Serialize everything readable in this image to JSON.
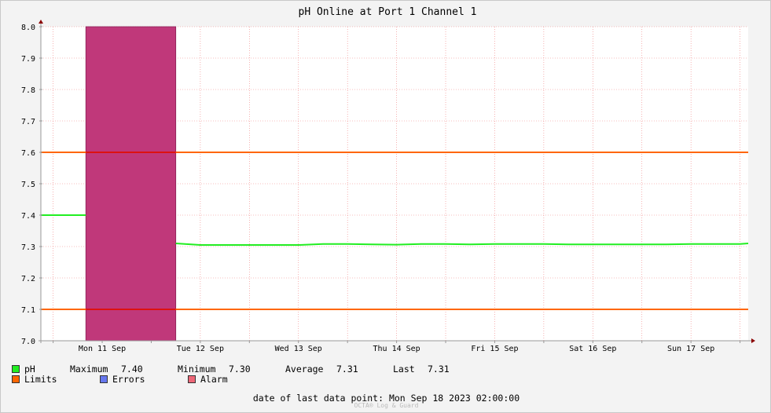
{
  "chart_data": {
    "type": "line",
    "title": "pH Online at Port 1 Channel 1",
    "ylim": [
      7.0,
      8.0
    ],
    "yticks": [
      "7.0",
      "7.1",
      "7.2",
      "7.3",
      "7.4",
      "7.5",
      "7.6",
      "7.7",
      "7.8",
      "7.9",
      "8.0"
    ],
    "xlim": [
      "2023-09-10T21:00",
      "2023-09-18T02:00"
    ],
    "xtick_labels": [
      {
        "label": "Mon 11 Sep",
        "at": "2023-09-11T12:00"
      },
      {
        "label": "Tue 12 Sep",
        "at": "2023-09-12T12:00"
      },
      {
        "label": "Wed 13 Sep",
        "at": "2023-09-13T12:00"
      },
      {
        "label": "Thu 14 Sep",
        "at": "2023-09-14T12:00"
      },
      {
        "label": "Fri 15 Sep",
        "at": "2023-09-15T12:00"
      },
      {
        "label": "Sat 16 Sep",
        "at": "2023-09-16T12:00"
      },
      {
        "label": "Sun 17 Sep",
        "at": "2023-09-17T12:00"
      }
    ],
    "grid": true,
    "limits": [
      7.1,
      7.6
    ],
    "error_band": {
      "from": "2023-09-11T08:00",
      "to": "2023-09-12T06:00",
      "color": "#c0387a"
    },
    "series": [
      {
        "name": "pH",
        "color": "#22ee22",
        "points": [
          [
            "2023-09-10T21:00",
            7.4
          ],
          [
            "2023-09-11T00:00",
            7.4
          ],
          [
            "2023-09-11T03:00",
            7.4
          ],
          [
            "2023-09-11T06:00",
            7.4
          ],
          [
            "2023-09-11T08:00",
            7.4
          ],
          null,
          [
            "2023-09-12T06:00",
            7.31
          ],
          [
            "2023-09-12T12:00",
            7.305
          ],
          [
            "2023-09-12T18:00",
            7.305
          ],
          [
            "2023-09-13T00:00",
            7.305
          ],
          [
            "2023-09-13T06:00",
            7.305
          ],
          [
            "2023-09-13T12:00",
            7.305
          ],
          [
            "2023-09-13T18:00",
            7.308
          ],
          [
            "2023-09-14T00:00",
            7.308
          ],
          [
            "2023-09-14T06:00",
            7.307
          ],
          [
            "2023-09-14T12:00",
            7.306
          ],
          [
            "2023-09-14T18:00",
            7.308
          ],
          [
            "2023-09-15T00:00",
            7.308
          ],
          [
            "2023-09-15T06:00",
            7.307
          ],
          [
            "2023-09-15T12:00",
            7.308
          ],
          [
            "2023-09-15T18:00",
            7.308
          ],
          [
            "2023-09-16T00:00",
            7.308
          ],
          [
            "2023-09-16T06:00",
            7.307
          ],
          [
            "2023-09-16T12:00",
            7.307
          ],
          [
            "2023-09-16T18:00",
            7.307
          ],
          [
            "2023-09-17T00:00",
            7.307
          ],
          [
            "2023-09-17T06:00",
            7.307
          ],
          [
            "2023-09-17T12:00",
            7.308
          ],
          [
            "2023-09-17T18:00",
            7.308
          ],
          [
            "2023-09-18T00:00",
            7.308
          ],
          [
            "2023-09-18T02:00",
            7.31
          ]
        ]
      }
    ],
    "colors": {
      "limits": "#ff6600",
      "limit_crossing": "#dd1111",
      "errors": "#6677ee",
      "alarm": "#ee6677",
      "grid": "#f08080",
      "axis": "#999999"
    }
  },
  "legend": {
    "ph_label": "pH",
    "max_label": "Maximum",
    "max_value": "7.40",
    "min_label": "Minimum",
    "min_value": "7.30",
    "avg_label": "Average",
    "avg_value": "7.31",
    "last_label": "Last",
    "last_value": "7.31",
    "limits_label": "Limits",
    "errors_label": "Errors",
    "alarm_label": "Alarm"
  },
  "footer": {
    "text": "date of last data point:  Mon Sep 18 2023 02:00:00",
    "watermark": "OCTA® Log & Guard"
  }
}
